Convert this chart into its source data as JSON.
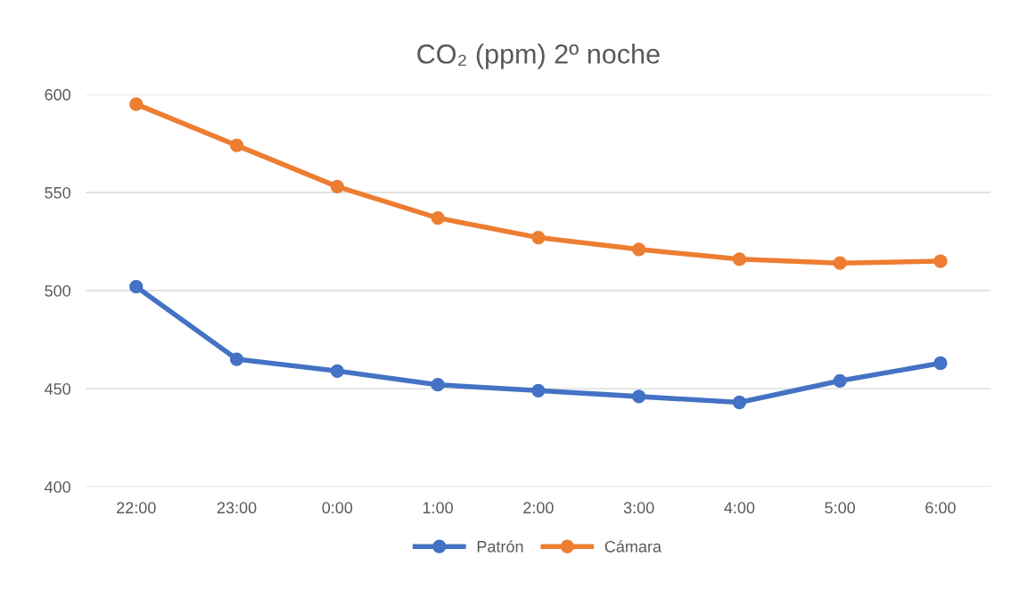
{
  "chart_data": {
    "type": "line",
    "title": "CO₂ (ppm) 2º noche",
    "categories": [
      "22:00",
      "23:00",
      "0:00",
      "1:00",
      "2:00",
      "3:00",
      "4:00",
      "5:00",
      "6:00"
    ],
    "series": [
      {
        "name": "Patrón",
        "color": "#4472c4",
        "values": [
          502,
          465,
          459,
          452,
          449,
          446,
          443,
          454,
          463
        ]
      },
      {
        "name": "Cámara",
        "color": "#ed7d31",
        "values": [
          595,
          574,
          553,
          537,
          527,
          521,
          516,
          514,
          515
        ]
      }
    ],
    "ylim": [
      400,
      600
    ],
    "yticks": [
      400,
      450,
      500,
      550,
      600
    ],
    "grid": "y",
    "legend": "bottom",
    "marker": "circle",
    "line_style": "solid"
  }
}
